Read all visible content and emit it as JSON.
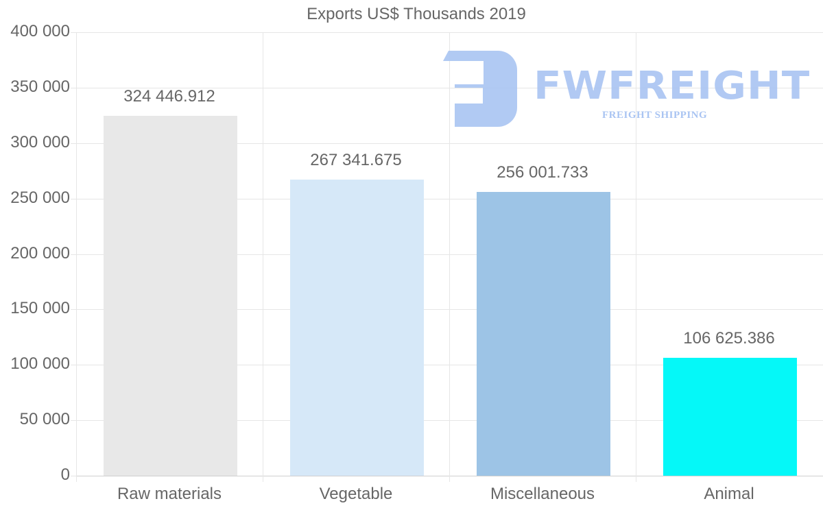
{
  "chart_data": {
    "type": "bar",
    "title": "Exports US$ Thousands 2019",
    "categories": [
      "Raw materials",
      "Vegetable",
      "Miscellaneous",
      "Animal"
    ],
    "values": [
      324446.912,
      267341.675,
      256001.733,
      106625.386
    ],
    "value_labels": [
      "324 446.912",
      "267 341.675",
      "256 001.733",
      "106 625.386"
    ],
    "colors": [
      "#e8e8e8",
      "#d6e8f8",
      "#9dc4e6",
      "#05f8f8"
    ],
    "xlabel": "",
    "ylabel": "",
    "ylim": [
      0,
      400000
    ],
    "yticks": [
      0,
      50000,
      100000,
      150000,
      200000,
      250000,
      300000,
      350000,
      400000
    ],
    "ytick_labels": [
      "0",
      "50 000",
      "100 000",
      "150 000",
      "200 000",
      "250 000",
      "300 000",
      "350 000",
      "400 000"
    ],
    "grid": true,
    "legend": "none"
  },
  "watermark": {
    "brand": "FWFREIGHT",
    "tagline": "FREIGHT SHIPPING",
    "color": "#a9c4f2"
  }
}
